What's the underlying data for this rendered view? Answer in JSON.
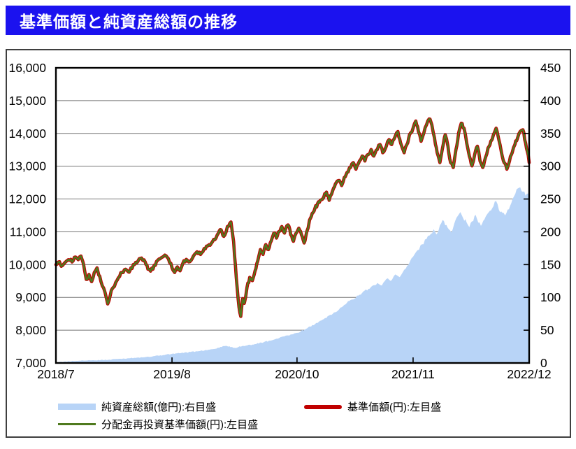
{
  "title": "基準価額と純資産総額の推移",
  "colors": {
    "title_bg": "#1b12ef",
    "title_fg": "#ffffff",
    "nav_line": "#c00000",
    "reinvested_line": "#4f7a1e",
    "area_fill": "#b8d4f7",
    "grid": "#757575",
    "frame": "#000000"
  },
  "legend": {
    "items": [
      {
        "id": "net-assets",
        "label": "純資産総額(億円):右目盛"
      },
      {
        "id": "nav",
        "label": "基準価額(円):左目盛"
      },
      {
        "id": "reinvested-nav",
        "label": "分配金再投資基準価額(円):左目盛"
      }
    ]
  },
  "chart_data": {
    "type": "area+line",
    "x_unit": "months since 2018/7",
    "x_range": [
      0,
      53
    ],
    "x_ticks": [
      {
        "m": 0,
        "label": "2018/7"
      },
      {
        "m": 13,
        "label": "2019/8"
      },
      {
        "m": 27,
        "label": "2020/10"
      },
      {
        "m": 40,
        "label": "2021/11"
      },
      {
        "m": 53,
        "label": "2022/12"
      }
    ],
    "left_axis": {
      "title": "基準価額(円)",
      "min": 7000,
      "max": 16000,
      "step": 1000,
      "tick_labels": [
        "16,000",
        "15,000",
        "14,000",
        "13,000",
        "12,000",
        "11,000",
        "10,000",
        "9,000",
        "8,000",
        "7,000"
      ]
    },
    "right_axis": {
      "title": "純資産総額(億円)",
      "min": 0,
      "max": 450,
      "step": 50,
      "tick_labels": [
        "450",
        "400",
        "350",
        "300",
        "250",
        "200",
        "150",
        "100",
        "50",
        "0"
      ]
    },
    "series": [
      {
        "name": "純資産総額(億円)",
        "axis": "right",
        "style": "area",
        "points_key": "net_assets_points"
      },
      {
        "name": "基準価額(円)",
        "axis": "left",
        "style": "line",
        "width": 4.6,
        "points_key": "nav_points"
      },
      {
        "name": "分配金再投資基準価額(円)",
        "axis": "left",
        "style": "line",
        "width": 2.4,
        "points_key": "nav_points"
      }
    ],
    "nav_points": [
      [
        0,
        10000
      ],
      [
        0.3,
        10080
      ],
      [
        0.6,
        9950
      ],
      [
        1,
        10060
      ],
      [
        1.4,
        10150
      ],
      [
        1.8,
        10080
      ],
      [
        2.2,
        10230
      ],
      [
        2.5,
        10150
      ],
      [
        2.8,
        10260
      ],
      [
        3.1,
        10000
      ],
      [
        3.4,
        9550
      ],
      [
        3.7,
        9700
      ],
      [
        4,
        9480
      ],
      [
        4.3,
        9760
      ],
      [
        4.6,
        9900
      ],
      [
        4.9,
        9650
      ],
      [
        5.2,
        9350
      ],
      [
        5.5,
        9150
      ],
      [
        5.8,
        8800
      ],
      [
        6.1,
        9080
      ],
      [
        6.4,
        9300
      ],
      [
        6.7,
        9460
      ],
      [
        7,
        9600
      ],
      [
        7.4,
        9760
      ],
      [
        7.8,
        9860
      ],
      [
        8.1,
        9780
      ],
      [
        8.4,
        9900
      ],
      [
        8.8,
        10000
      ],
      [
        9.2,
        10110
      ],
      [
        9.6,
        10200
      ],
      [
        10,
        10080
      ],
      [
        10.3,
        9860
      ],
      [
        10.6,
        9800
      ],
      [
        11,
        9980
      ],
      [
        11.4,
        10130
      ],
      [
        11.8,
        10210
      ],
      [
        12.2,
        10290
      ],
      [
        12.6,
        10180
      ],
      [
        13,
        9900
      ],
      [
        13.3,
        9760
      ],
      [
        13.6,
        9930
      ],
      [
        13.9,
        9810
      ],
      [
        14.2,
        10030
      ],
      [
        14.6,
        10160
      ],
      [
        15,
        10090
      ],
      [
        15.4,
        10260
      ],
      [
        15.8,
        10390
      ],
      [
        16.2,
        10310
      ],
      [
        16.6,
        10490
      ],
      [
        17,
        10570
      ],
      [
        17.4,
        10650
      ],
      [
        17.8,
        10760
      ],
      [
        18.2,
        10960
      ],
      [
        18.5,
        11060
      ],
      [
        18.8,
        10860
      ],
      [
        19.2,
        11160
      ],
      [
        19.6,
        11300
      ],
      [
        19.9,
        10700
      ],
      [
        20.2,
        9600
      ],
      [
        20.5,
        8700
      ],
      [
        20.7,
        8420
      ],
      [
        20.9,
        8960
      ],
      [
        21.1,
        8820
      ],
      [
        21.4,
        9310
      ],
      [
        21.7,
        9610
      ],
      [
        22,
        9510
      ],
      [
        22.3,
        9810
      ],
      [
        22.6,
        10110
      ],
      [
        22.9,
        10460
      ],
      [
        23.2,
        10310
      ],
      [
        23.5,
        10610
      ],
      [
        23.8,
        10460
      ],
      [
        24.1,
        10710
      ],
      [
        24.4,
        10960
      ],
      [
        24.7,
        10810
      ],
      [
        25,
        11010
      ],
      [
        25.3,
        11160
      ],
      [
        25.6,
        10960
      ],
      [
        26,
        11210
      ],
      [
        26.3,
        10910
      ],
      [
        26.6,
        10710
      ],
      [
        26.9,
        10960
      ],
      [
        27.2,
        11110
      ],
      [
        27.5,
        10910
      ],
      [
        27.8,
        10660
      ],
      [
        28.1,
        11010
      ],
      [
        28.4,
        11360
      ],
      [
        28.7,
        11560
      ],
      [
        29,
        11710
      ],
      [
        29.3,
        11860
      ],
      [
        29.6,
        11960
      ],
      [
        30,
        12060
      ],
      [
        30.3,
        12210
      ],
      [
        30.6,
        11960
      ],
      [
        31,
        12260
      ],
      [
        31.3,
        12460
      ],
      [
        31.6,
        12560
      ],
      [
        32,
        12410
      ],
      [
        32.3,
        12660
      ],
      [
        32.6,
        12810
      ],
      [
        33,
        12960
      ],
      [
        33.3,
        13110
      ],
      [
        33.6,
        12910
      ],
      [
        34,
        13160
      ],
      [
        34.3,
        13310
      ],
      [
        34.6,
        13160
      ],
      [
        35,
        13360
      ],
      [
        35.3,
        13510
      ],
      [
        35.6,
        13310
      ],
      [
        36,
        13510
      ],
      [
        36.3,
        13660
      ],
      [
        36.6,
        13410
      ],
      [
        37,
        13610
      ],
      [
        37.3,
        13810
      ],
      [
        37.6,
        13660
      ],
      [
        38,
        13910
      ],
      [
        38.3,
        14060
      ],
      [
        38.6,
        13710
      ],
      [
        39,
        13410
      ],
      [
        39.3,
        13660
      ],
      [
        39.6,
        13960
      ],
      [
        40,
        14160
      ],
      [
        40.3,
        14380
      ],
      [
        40.6,
        14060
      ],
      [
        40.9,
        13760
      ],
      [
        41.2,
        14010
      ],
      [
        41.5,
        14260
      ],
      [
        41.8,
        14440
      ],
      [
        42.1,
        14260
      ],
      [
        42.4,
        13860
      ],
      [
        42.7,
        13410
      ],
      [
        43,
        13110
      ],
      [
        43.3,
        13560
      ],
      [
        43.6,
        13960
      ],
      [
        43.9,
        13610
      ],
      [
        44.2,
        13110
      ],
      [
        44.5,
        12960
      ],
      [
        44.8,
        13510
      ],
      [
        45.1,
        14010
      ],
      [
        45.4,
        14310
      ],
      [
        45.7,
        14160
      ],
      [
        46,
        13710
      ],
      [
        46.3,
        13310
      ],
      [
        46.6,
        13010
      ],
      [
        46.9,
        13360
      ],
      [
        47.2,
        13610
      ],
      [
        47.5,
        13160
      ],
      [
        47.8,
        12960
      ],
      [
        48.1,
        13260
      ],
      [
        48.4,
        13560
      ],
      [
        48.7,
        13760
      ],
      [
        49,
        13960
      ],
      [
        49.3,
        14160
      ],
      [
        49.6,
        13810
      ],
      [
        49.9,
        13410
      ],
      [
        50.2,
        13110
      ],
      [
        50.5,
        12910
      ],
      [
        50.8,
        13160
      ],
      [
        51.1,
        13410
      ],
      [
        51.4,
        13660
      ],
      [
        51.7,
        13860
      ],
      [
        52,
        14060
      ],
      [
        52.3,
        14110
      ],
      [
        52.6,
        13710
      ],
      [
        52.8,
        13450
      ],
      [
        53,
        13110
      ]
    ],
    "net_assets_points": [
      [
        0,
        1
      ],
      [
        2,
        3
      ],
      [
        4,
        4
      ],
      [
        6,
        5
      ],
      [
        8,
        7
      ],
      [
        10,
        9
      ],
      [
        12,
        12
      ],
      [
        13,
        14
      ],
      [
        14,
        15
      ],
      [
        16,
        18
      ],
      [
        18,
        22
      ],
      [
        19,
        26
      ],
      [
        20,
        23
      ],
      [
        21,
        26
      ],
      [
        22,
        28
      ],
      [
        23,
        31
      ],
      [
        24,
        34
      ],
      [
        25,
        38
      ],
      [
        26,
        42
      ],
      [
        27,
        46
      ],
      [
        28,
        52
      ],
      [
        29,
        59
      ],
      [
        30,
        67
      ],
      [
        31,
        75
      ],
      [
        32,
        85
      ],
      [
        33,
        96
      ],
      [
        34,
        104
      ],
      [
        35,
        113
      ],
      [
        36,
        122
      ],
      [
        36.5,
        118
      ],
      [
        37,
        128
      ],
      [
        37.5,
        125
      ],
      [
        38,
        135
      ],
      [
        38.5,
        131
      ],
      [
        39,
        142
      ],
      [
        39.5,
        150
      ],
      [
        40,
        162
      ],
      [
        40.5,
        172
      ],
      [
        41,
        181
      ],
      [
        41.5,
        189
      ],
      [
        42,
        197
      ],
      [
        42.3,
        204
      ],
      [
        42.6,
        196
      ],
      [
        43,
        210
      ],
      [
        43.3,
        218
      ],
      [
        43.6,
        210
      ],
      [
        44,
        204
      ],
      [
        44.3,
        199
      ],
      [
        44.6,
        212
      ],
      [
        45,
        224
      ],
      [
        45.3,
        230
      ],
      [
        45.6,
        221
      ],
      [
        46,
        214
      ],
      [
        46.3,
        207
      ],
      [
        46.6,
        216
      ],
      [
        47,
        226
      ],
      [
        47.3,
        214
      ],
      [
        47.6,
        209
      ],
      [
        48,
        219
      ],
      [
        48.3,
        227
      ],
      [
        48.6,
        232
      ],
      [
        49,
        239
      ],
      [
        49.3,
        247
      ],
      [
        49.6,
        234
      ],
      [
        50,
        229
      ],
      [
        50.3,
        225
      ],
      [
        50.6,
        234
      ],
      [
        51,
        244
      ],
      [
        51.3,
        254
      ],
      [
        51.6,
        265
      ],
      [
        52,
        268
      ],
      [
        52.3,
        261
      ],
      [
        52.6,
        255
      ],
      [
        53,
        259
      ]
    ]
  }
}
